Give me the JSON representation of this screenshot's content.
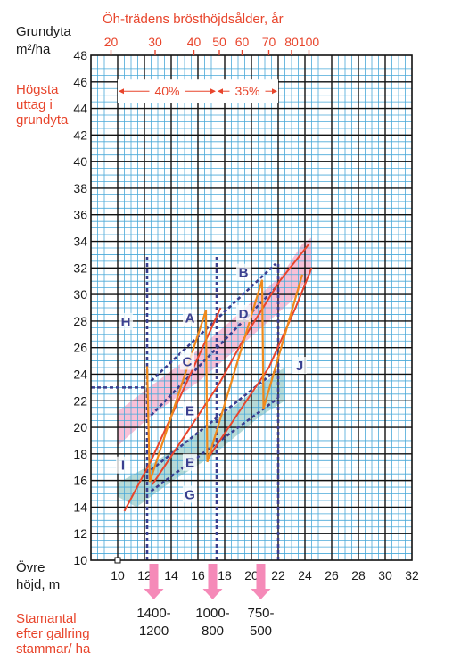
{
  "chart_data": {
    "type": "line",
    "y_axis_title": [
      "Grundyta",
      "m²/ha"
    ],
    "top_axis_title": "Öh-trädens brösthöjdsålder, år",
    "top_axis_ticks": [
      {
        "x": 9.5,
        "label": "20"
      },
      {
        "x": 12.8,
        "label": "30"
      },
      {
        "x": 15.7,
        "label": "40"
      },
      {
        "x": 17.6,
        "label": "50"
      },
      {
        "x": 19.3,
        "label": "60"
      },
      {
        "x": 21.3,
        "label": "70"
      },
      {
        "x": 23.0,
        "label": "80"
      },
      {
        "x": 24.3,
        "label": "100"
      }
    ],
    "uttag_label": [
      "Högsta",
      "uttag i",
      "grundyta"
    ],
    "uttag_percentages": [
      {
        "label": "40%",
        "x_from": 10,
        "x_to": 17.4
      },
      {
        "label": "35%",
        "x_from": 17.4,
        "x_to": 22
      }
    ],
    "x_axis_title": [
      "Övre",
      "höjd, m"
    ],
    "xlim": [
      8,
      32
    ],
    "ylim": [
      10,
      48
    ],
    "x_ticks": [
      10,
      12,
      14,
      16,
      18,
      20,
      22,
      24,
      26,
      28,
      30,
      32
    ],
    "y_ticks": [
      10,
      12,
      14,
      16,
      18,
      20,
      22,
      24,
      26,
      28,
      30,
      32,
      34,
      36,
      38,
      40,
      42,
      44,
      46,
      48
    ],
    "region_letters": [
      {
        "label": "H",
        "x": 10.2,
        "y": 27.6
      },
      {
        "label": "A",
        "x": 15.0,
        "y": 27.9
      },
      {
        "label": "B",
        "x": 19.0,
        "y": 31.3
      },
      {
        "label": "C",
        "x": 14.8,
        "y": 24.6
      },
      {
        "label": "D",
        "x": 19.0,
        "y": 28.2
      },
      {
        "label": "E",
        "x": 15.0,
        "y": 20.9
      },
      {
        "label": "E",
        "x": 15.0,
        "y": 17.0
      },
      {
        "label": "I",
        "x": 10.0,
        "y": 16.8
      },
      {
        "label": "G",
        "x": 15.0,
        "y": 14.6
      },
      {
        "label": "J",
        "x": 23.2,
        "y": 24.3
      }
    ],
    "pink_band": [
      [
        10,
        20
      ],
      [
        10,
        21.2
      ],
      [
        15.5,
        25.4
      ],
      [
        19,
        28.5
      ],
      [
        22.3,
        31.5
      ],
      [
        23.8,
        33.8
      ],
      [
        24.5,
        34.3
      ],
      [
        24.5,
        31.6
      ],
      [
        23,
        29.5
      ],
      [
        19.5,
        26.4
      ],
      [
        16,
        23.4
      ],
      [
        12.4,
        20.8
      ],
      [
        10,
        18.6
      ]
    ],
    "blue_band": [
      [
        10,
        14.8
      ],
      [
        10,
        15.8
      ],
      [
        12.5,
        17.2
      ],
      [
        16,
        19.6
      ],
      [
        19,
        21.8
      ],
      [
        22,
        24.2
      ],
      [
        22.5,
        24.5
      ],
      [
        22.5,
        22.0
      ],
      [
        20.6,
        20.8
      ],
      [
        17,
        17.8
      ],
      [
        14,
        15.9
      ],
      [
        11.4,
        14.0
      ]
    ],
    "dashed_upper": [
      [
        [
          12.5,
          20.9
        ],
        [
          21.8,
          30.5
        ]
      ],
      [
        [
          12.5,
          23.5
        ],
        [
          21.8,
          32.3
        ]
      ]
    ],
    "dashed_lower": [
      [
        [
          12.5,
          15.2
        ],
        [
          22,
          22.2
        ]
      ],
      [
        [
          12.5,
          16.8
        ],
        [
          22,
          24.4
        ]
      ]
    ],
    "dashed_verticals": [
      {
        "x": 12.2,
        "y_from": 10,
        "y_to": 33
      },
      {
        "x": 17.4,
        "y_from": 10,
        "y_to": 33
      },
      {
        "x": 22.0,
        "y_from": 10,
        "y_to": 32.3
      }
    ],
    "dashed_horizontal": {
      "y": 23,
      "x_from": 8,
      "x_to": 12.3
    },
    "red_lines": [
      [
        [
          10.5,
          13.7
        ],
        [
          12.5,
          17.5
        ],
        [
          17.7,
          29.0
        ]
      ],
      [
        [
          12.6,
          15.7
        ],
        [
          17.6,
          23.3
        ],
        [
          19.5,
          26.8
        ],
        [
          22.1,
          31.0
        ],
        [
          24.3,
          33.8
        ]
      ],
      [
        [
          16.7,
          17.6
        ],
        [
          21.3,
          24.5
        ],
        [
          23.3,
          29.0
        ],
        [
          24.5,
          32.0
        ]
      ]
    ],
    "orange_lines": [
      [
        [
          12.2,
          24.6
        ],
        [
          12.4,
          15.9
        ],
        [
          16.6,
          28.8
        ],
        [
          16.7,
          17.4
        ],
        [
          20.8,
          31.1
        ],
        [
          20.9,
          21.4
        ],
        [
          23.8,
          31.5
        ]
      ]
    ],
    "stem_counts_title": [
      "Stamantal",
      "efter gallring",
      "stammar/ ha"
    ],
    "stem_counts": [
      {
        "x": 12.7,
        "lines": [
          "1400-",
          "1200"
        ]
      },
      {
        "x": 17.1,
        "lines": [
          "1000-",
          "800"
        ]
      },
      {
        "x": 20.7,
        "lines": [
          "750-",
          "500"
        ]
      }
    ]
  }
}
